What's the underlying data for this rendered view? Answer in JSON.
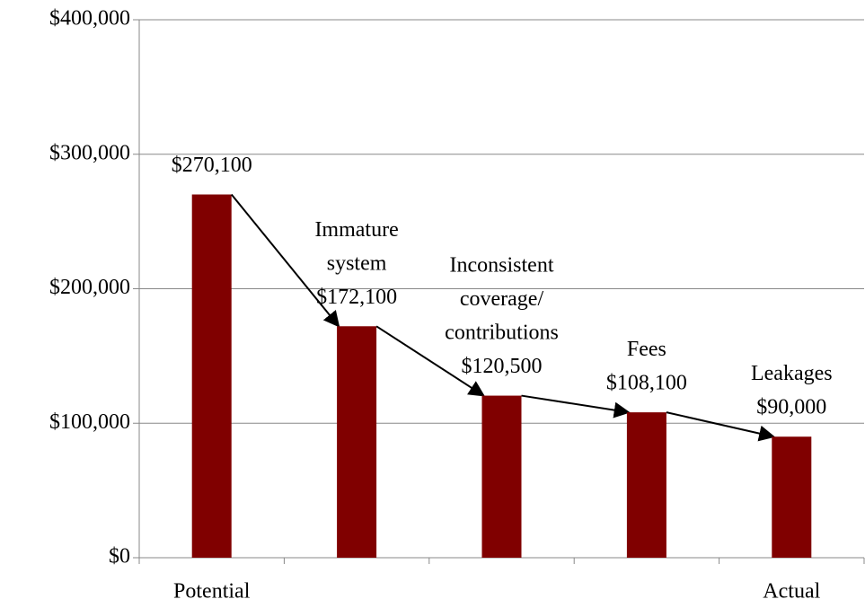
{
  "chart_data": {
    "type": "bar",
    "categories": [
      "Potential",
      null,
      null,
      null,
      "Actual"
    ],
    "values": [
      270100,
      172100,
      120500,
      108100,
      90000
    ],
    "value_labels": [
      "$270,100",
      "$172,100",
      "$120,500",
      "$108,100",
      "$90,000"
    ],
    "annotations": [
      [
        "Immature",
        "system"
      ],
      [
        "Inconsistent",
        "coverage/",
        "contributions"
      ],
      [
        "Fees"
      ],
      [
        "Leakages"
      ]
    ],
    "color": "#800000",
    "ylim": [
      0,
      400000
    ],
    "yticks": [
      {
        "value": 0,
        "label": "$0"
      },
      {
        "value": 100000,
        "label": "$100,000"
      },
      {
        "value": 200000,
        "label": "$200,000"
      },
      {
        "value": 300000,
        "label": "$300,000"
      },
      {
        "value": 400000,
        "label": "$400,000"
      }
    ],
    "grid": true
  }
}
